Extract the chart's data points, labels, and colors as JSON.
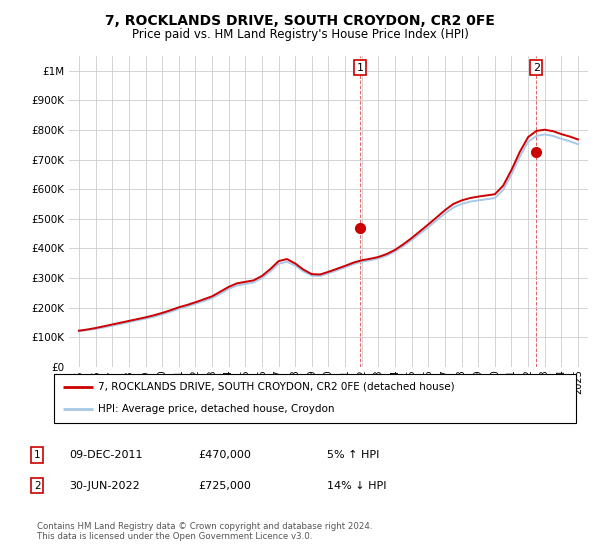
{
  "title": "7, ROCKLANDS DRIVE, SOUTH CROYDON, CR2 0FE",
  "subtitle": "Price paid vs. HM Land Registry's House Price Index (HPI)",
  "legend_line1": "7, ROCKLANDS DRIVE, SOUTH CROYDON, CR2 0FE (detached house)",
  "legend_line2": "HPI: Average price, detached house, Croydon",
  "footer": "Contains HM Land Registry data © Crown copyright and database right 2024.\nThis data is licensed under the Open Government Licence v3.0.",
  "annotation1_date": "09-DEC-2011",
  "annotation1_price": "£470,000",
  "annotation1_hpi": "5% ↑ HPI",
  "annotation2_date": "30-JUN-2022",
  "annotation2_price": "£725,000",
  "annotation2_hpi": "14% ↓ HPI",
  "hpi_color": "#a8c8e8",
  "price_color": "#cc0000",
  "grid_color": "#cccccc",
  "ylim_min": 0,
  "ylim_max": 1050000,
  "sale1_year": 2011.92,
  "sale1_price": 470000,
  "sale2_year": 2022.5,
  "sale2_price": 725000
}
